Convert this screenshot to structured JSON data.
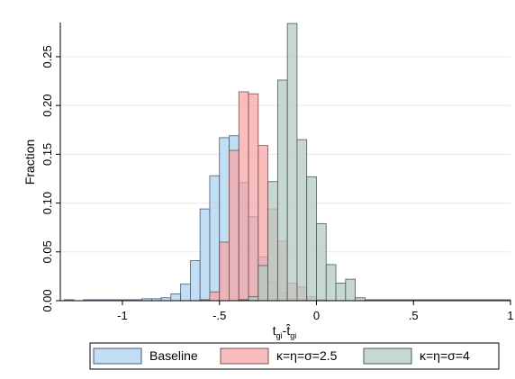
{
  "chart_data": {
    "type": "bar",
    "subtype": "overlaid-histogram",
    "title": "",
    "ylabel": "Fraction",
    "xlabel": {
      "main1": "t",
      "sub1": "gi",
      "sep": "-",
      "main2": "t̂",
      "sub2": "gi"
    },
    "xlim": [
      -1.32,
      1.0
    ],
    "ylim": [
      0,
      0.285
    ],
    "xticks": [
      {
        "value": -1.0,
        "label": "-1"
      },
      {
        "value": -0.5,
        "label": "-.5"
      },
      {
        "value": 0.0,
        "label": "0"
      },
      {
        "value": 0.5,
        "label": ".5"
      },
      {
        "value": 1.0,
        "label": "1"
      }
    ],
    "yticks": [
      {
        "value": 0.0,
        "label": "0.00"
      },
      {
        "value": 0.05,
        "label": "0.05"
      },
      {
        "value": 0.1,
        "label": "0.10"
      },
      {
        "value": 0.15,
        "label": "0.15"
      },
      {
        "value": 0.2,
        "label": "0.20"
      },
      {
        "value": 0.25,
        "label": "0.25"
      }
    ],
    "grid": true,
    "legend_position": "bottom",
    "bin_width": 0.05,
    "series": [
      {
        "name": "Baseline",
        "fill": "#a9d1f0",
        "stroke": "#4a5a78",
        "opacity": 0.72,
        "bins": [
          {
            "x": -1.3,
            "value": 0.001
          },
          {
            "x": -1.2,
            "value": 0.001
          },
          {
            "x": -1.15,
            "value": 0.001
          },
          {
            "x": -1.1,
            "value": 0.001
          },
          {
            "x": -1.05,
            "value": 0.001
          },
          {
            "x": -1.0,
            "value": 0.001
          },
          {
            "x": -0.95,
            "value": 0.001
          },
          {
            "x": -0.9,
            "value": 0.002
          },
          {
            "x": -0.85,
            "value": 0.002
          },
          {
            "x": -0.8,
            "value": 0.003
          },
          {
            "x": -0.75,
            "value": 0.007
          },
          {
            "x": -0.7,
            "value": 0.017
          },
          {
            "x": -0.65,
            "value": 0.041
          },
          {
            "x": -0.6,
            "value": 0.094
          },
          {
            "x": -0.55,
            "value": 0.128
          },
          {
            "x": -0.5,
            "value": 0.167
          },
          {
            "x": -0.45,
            "value": 0.169
          },
          {
            "x": -0.4,
            "value": 0.121
          },
          {
            "x": -0.35,
            "value": 0.086
          },
          {
            "x": -0.3,
            "value": 0.045
          },
          {
            "x": -0.25,
            "value": 0.02
          },
          {
            "x": -0.2,
            "value": 0.008
          },
          {
            "x": -0.15,
            "value": 0.002
          },
          {
            "x": -0.1,
            "value": 0.001
          }
        ]
      },
      {
        "name": "κ=η=σ=2.5",
        "fill": "#f7a3a3",
        "stroke": "#7c4f52",
        "opacity": 0.72,
        "bins": [
          {
            "x": -0.6,
            "value": 0.001
          },
          {
            "x": -0.55,
            "value": 0.009
          },
          {
            "x": -0.5,
            "value": 0.06
          },
          {
            "x": -0.45,
            "value": 0.154
          },
          {
            "x": -0.4,
            "value": 0.214
          },
          {
            "x": -0.35,
            "value": 0.212
          },
          {
            "x": -0.3,
            "value": 0.159
          },
          {
            "x": -0.25,
            "value": 0.094
          },
          {
            "x": -0.2,
            "value": 0.061
          },
          {
            "x": -0.15,
            "value": 0.018
          },
          {
            "x": -0.1,
            "value": 0.014
          },
          {
            "x": -0.05,
            "value": 0.004
          },
          {
            "x": 0.0,
            "value": 0.001
          }
        ]
      },
      {
        "name": "κ=η=σ=4",
        "fill": "#b3cbc1",
        "stroke": "#4c5a57",
        "opacity": 0.75,
        "bins": [
          {
            "x": -0.4,
            "value": 0.001
          },
          {
            "x": -0.35,
            "value": 0.004
          },
          {
            "x": -0.3,
            "value": 0.036
          },
          {
            "x": -0.25,
            "value": 0.122
          },
          {
            "x": -0.2,
            "value": 0.226
          },
          {
            "x": -0.15,
            "value": 0.284
          },
          {
            "x": -0.1,
            "value": 0.165
          },
          {
            "x": -0.05,
            "value": 0.127
          },
          {
            "x": 0.0,
            "value": 0.079
          },
          {
            "x": 0.05,
            "value": 0.037
          },
          {
            "x": 0.1,
            "value": 0.018
          },
          {
            "x": 0.15,
            "value": 0.022
          },
          {
            "x": 0.2,
            "value": 0.003
          },
          {
            "x": 0.25,
            "value": 0.001
          },
          {
            "x": 0.3,
            "value": 0.001
          },
          {
            "x": 0.35,
            "value": 0.001
          },
          {
            "x": 0.4,
            "value": 0.001
          },
          {
            "x": 0.45,
            "value": 0.001
          },
          {
            "x": 0.5,
            "value": 0.001
          },
          {
            "x": 0.55,
            "value": 0.001
          },
          {
            "x": 0.6,
            "value": 0.001
          },
          {
            "x": 0.65,
            "value": 0.001
          },
          {
            "x": 0.7,
            "value": 0.001
          },
          {
            "x": 0.75,
            "value": 0.001
          },
          {
            "x": 0.8,
            "value": 0.001
          },
          {
            "x": 0.85,
            "value": 0.001
          },
          {
            "x": 0.9,
            "value": 0.001
          },
          {
            "x": 0.95,
            "value": 0.001
          }
        ]
      }
    ]
  }
}
